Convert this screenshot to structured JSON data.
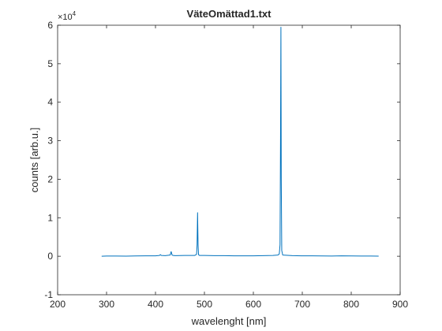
{
  "colors": {
    "line": "#0072BD",
    "axis": "#262626",
    "background": "#ffffff"
  },
  "chart_data": {
    "type": "line",
    "title": "VäteOmättad1.txt",
    "xlabel": "wavelenght [nm]",
    "ylabel": "counts [arb.u.]",
    "xlim": [
      200,
      900
    ],
    "ylim": [
      -10000,
      60000
    ],
    "xticks": [
      200,
      300,
      400,
      500,
      600,
      700,
      800,
      900
    ],
    "yticks": [
      -1,
      0,
      1,
      2,
      3,
      4,
      5,
      6
    ],
    "yscale_multiplier": "×10^4",
    "grid": false,
    "legend": "none",
    "series": [
      {
        "x": [
          290,
          300,
          320,
          340,
          360,
          380,
          400,
          408,
          410,
          412,
          420,
          430,
          432,
          434,
          436,
          440,
          460,
          480,
          484,
          485,
          486,
          487,
          488,
          490,
          500,
          520,
          540,
          560,
          580,
          600,
          620,
          640,
          650,
          653,
          654.5,
          655.5,
          656.3,
          657,
          658,
          660,
          680,
          700,
          720,
          740,
          760,
          780,
          800,
          820,
          840,
          856
        ],
        "y": [
          0,
          50,
          60,
          40,
          80,
          100,
          100,
          200,
          400,
          200,
          150,
          300,
          1200,
          300,
          200,
          150,
          200,
          200,
          500,
          3000,
          11300,
          3000,
          400,
          200,
          200,
          150,
          150,
          100,
          100,
          100,
          150,
          200,
          300,
          600,
          3000,
          30000,
          59500,
          20000,
          1500,
          300,
          150,
          100,
          100,
          80,
          60,
          100,
          80,
          60,
          50,
          40
        ]
      }
    ]
  }
}
